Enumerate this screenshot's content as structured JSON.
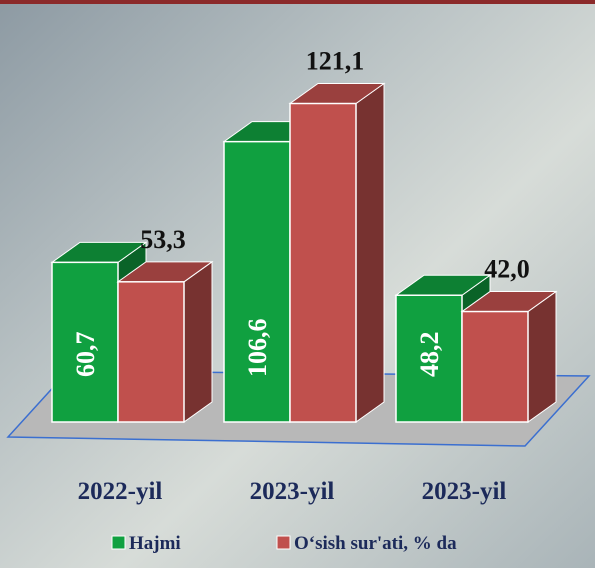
{
  "chart_data": {
    "type": "bar3d",
    "categories": [
      "2022-yil",
      "2023-yil",
      "2023-yil"
    ],
    "series": [
      {
        "name": "Hajmi",
        "color": "#10a040",
        "values": [
          60.7,
          106.6,
          48.2
        ],
        "value_labels": [
          "60,7",
          "106,6",
          "48,2"
        ]
      },
      {
        "name": "O‘sish sur'ati, % da",
        "color": "#c0504d",
        "values": [
          53.3,
          121.1,
          42.0
        ],
        "value_labels": [
          "53,3",
          "121,1",
          "42,0"
        ]
      }
    ]
  }
}
